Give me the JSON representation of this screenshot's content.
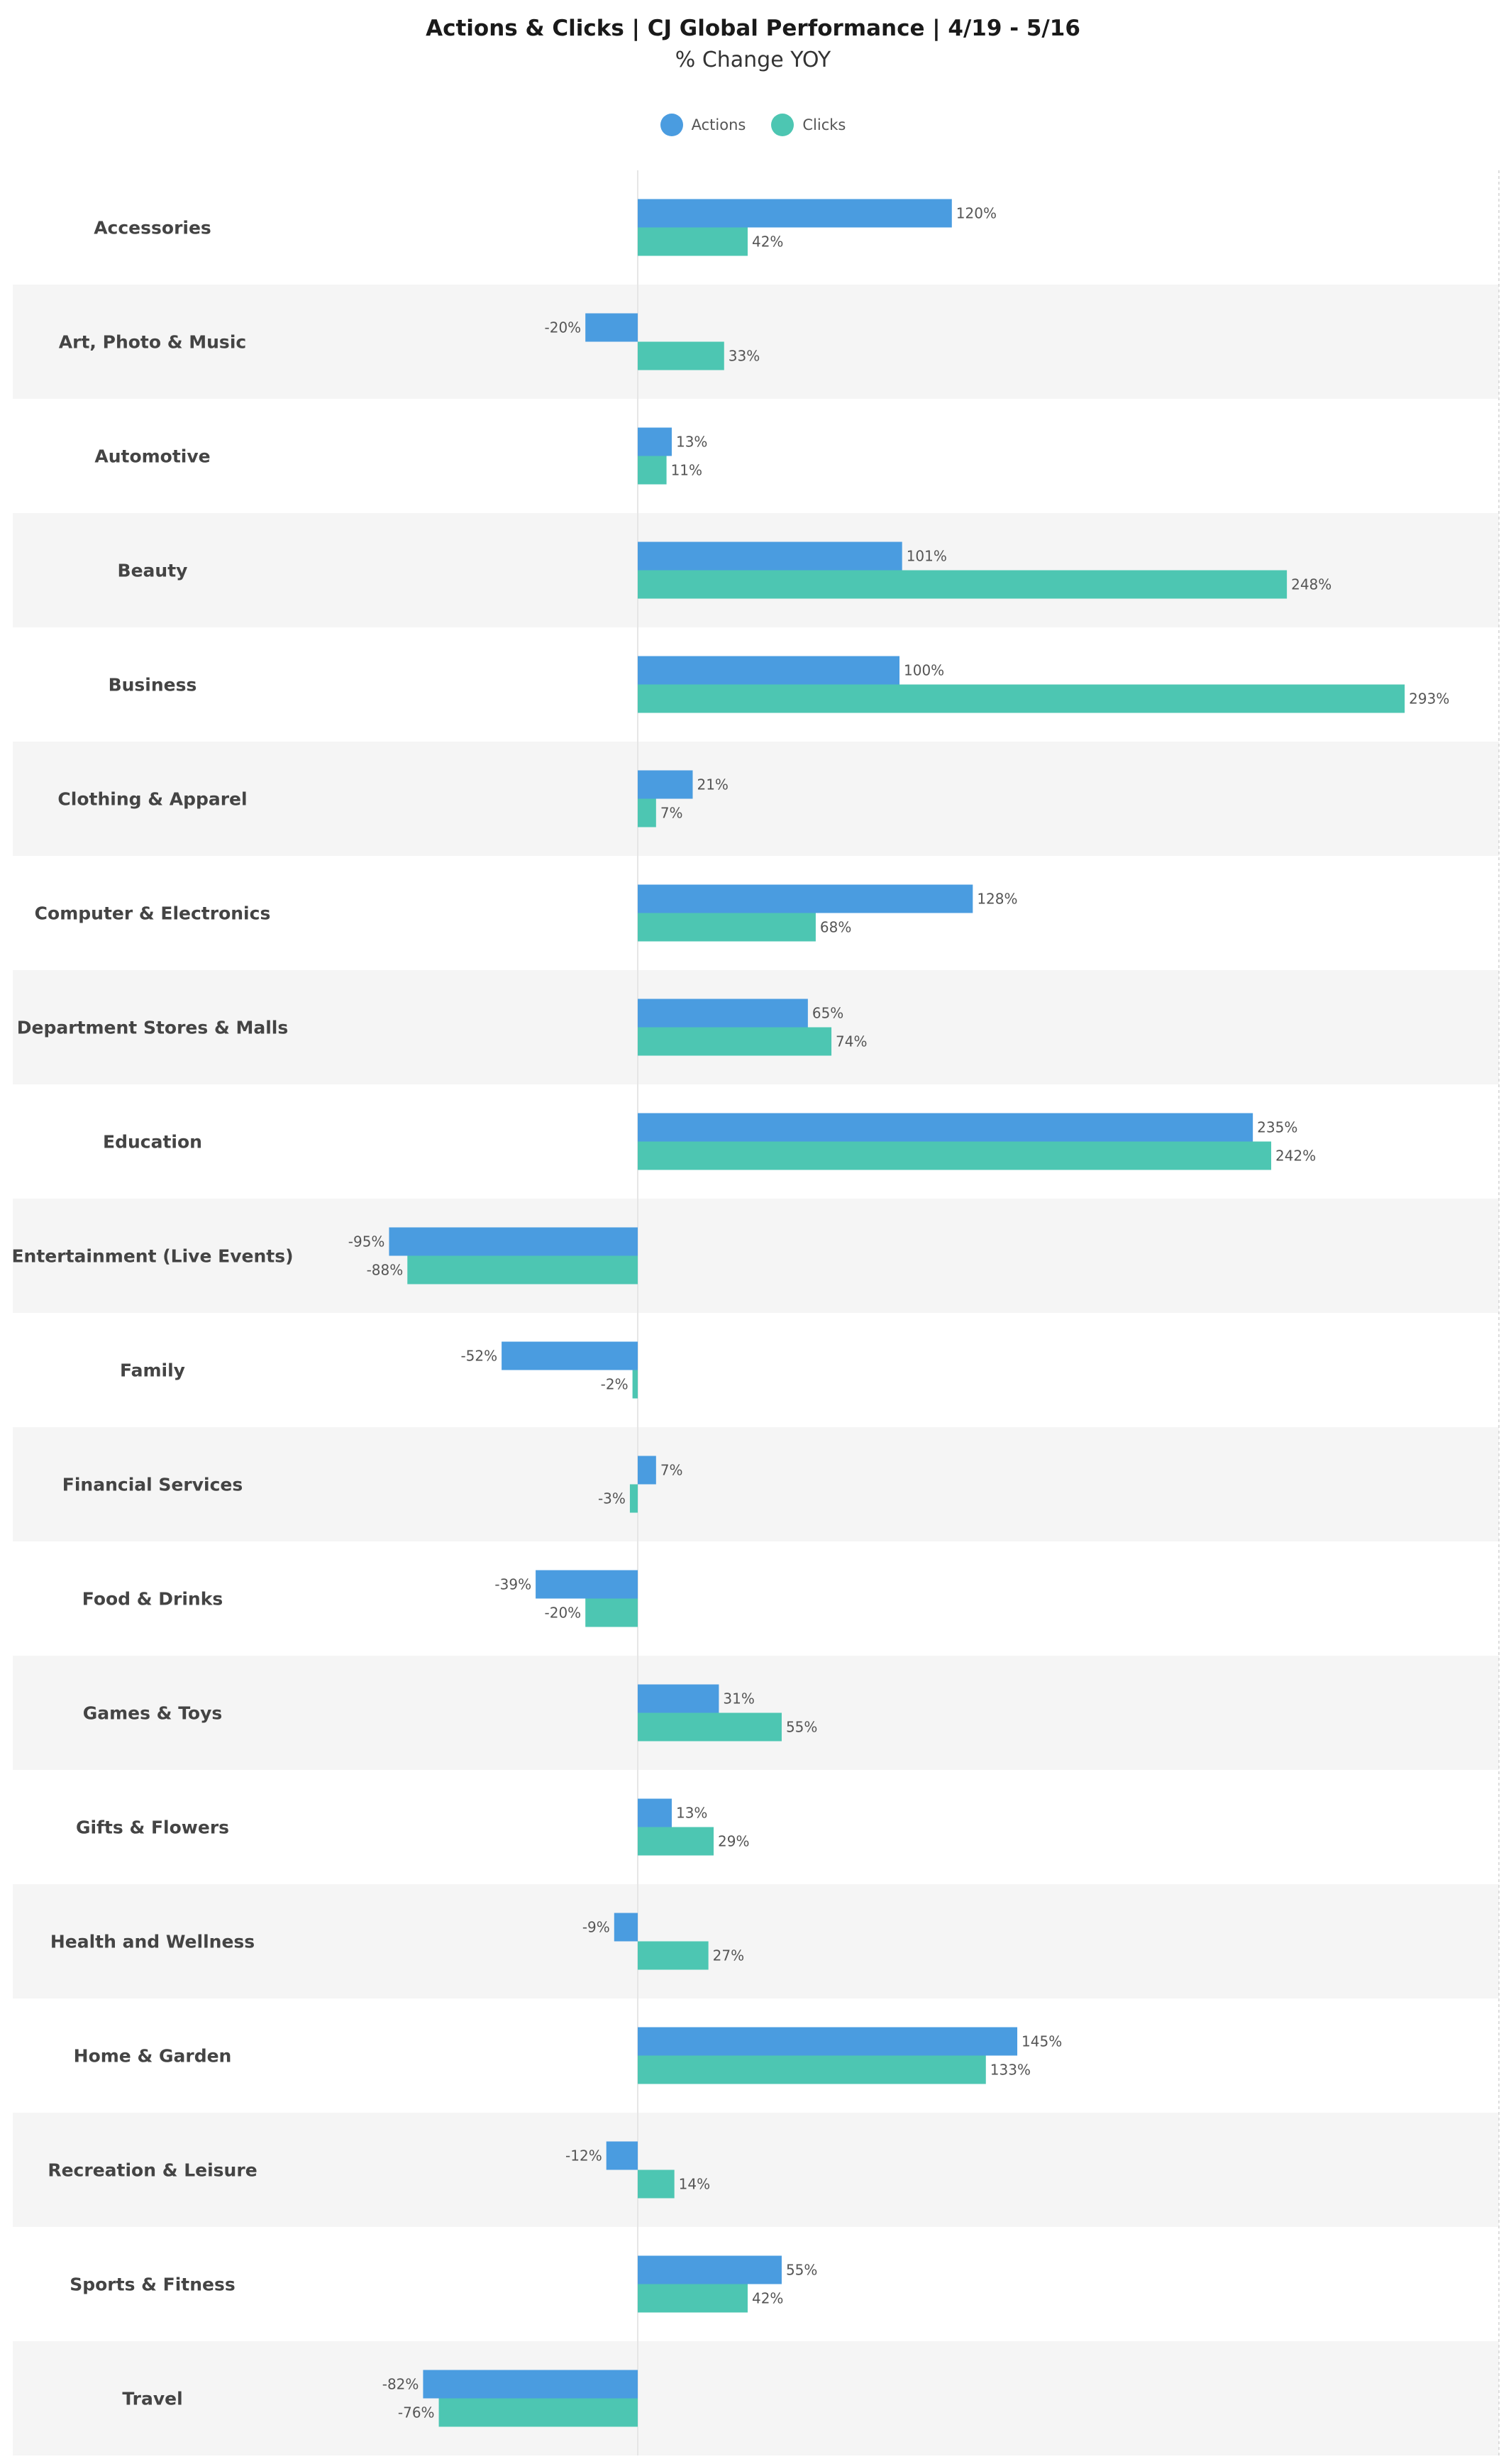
{
  "chart_data": {
    "type": "bar",
    "orientation": "horizontal",
    "title": "Actions & Clicks | CJ Global Performance |  4/19 - 5/16",
    "subtitle": "% Change YOY",
    "legend_position": "top-center",
    "grid": false,
    "xlim": [
      -105,
      330
    ],
    "categories": [
      "Accessories",
      "Art, Photo & Music",
      "Automotive",
      "Beauty",
      "Business",
      "Clothing & Apparel",
      "Computer & Electronics",
      "Department Stores & Malls",
      "Education",
      "Entertainment (Live Events)",
      "Family",
      "Financial Services",
      "Food & Drinks",
      "Games & Toys",
      "Gifts & Flowers",
      "Health and Wellness",
      "Home & Garden",
      "Recreation & Leisure",
      "Sports & Fitness",
      "Travel"
    ],
    "series": [
      {
        "name": "Actions",
        "color": "#4a9ce0",
        "values": [
          120,
          -20,
          13,
          101,
          100,
          21,
          128,
          65,
          235,
          -95,
          -52,
          7,
          -39,
          31,
          13,
          -9,
          145,
          -12,
          55,
          -82
        ],
        "labels": [
          "120%",
          "-20%",
          "13%",
          "101%",
          "100%",
          "21%",
          "128%",
          "65%",
          "235%",
          "-95%",
          "-52%",
          "7%",
          "-39%",
          "31%",
          "13%",
          "-9%",
          "145%",
          "-12%",
          "55%",
          "-82%"
        ]
      },
      {
        "name": "Clicks",
        "color": "#4dc6b2",
        "values": [
          42,
          33,
          11,
          248,
          293,
          7,
          68,
          74,
          242,
          -88,
          -2,
          -3,
          -20,
          55,
          29,
          27,
          133,
          14,
          42,
          -76
        ],
        "labels": [
          "42%",
          "33%",
          "11%",
          "248%",
          "293%",
          "7%",
          "68%",
          "74%",
          "242%",
          "-88%",
          "-2%",
          "-3%",
          "-20%",
          "55%",
          "29%",
          "27%",
          "133%",
          "14%",
          "42%",
          "-76%"
        ]
      }
    ]
  }
}
